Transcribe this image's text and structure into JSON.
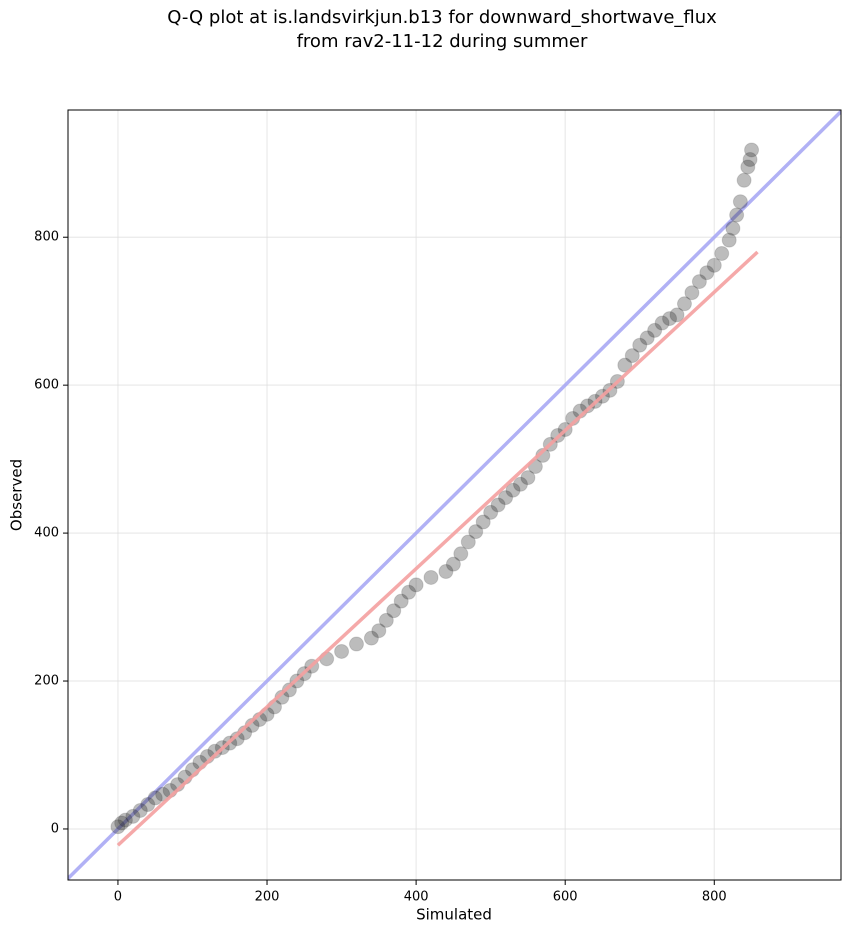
{
  "chart_data": {
    "type": "scatter",
    "title_lines": [
      "Q-Q plot at is.landsvirkjun.b13 for downward_shortwave_flux",
      "from rav2-11-12 during summer"
    ],
    "xlabel": "Simulated",
    "ylabel": "Observed",
    "xlim": [
      -67,
      970
    ],
    "ylim": [
      -69,
      972
    ],
    "xticks": [
      0,
      200,
      400,
      600,
      800
    ],
    "yticks": [
      0,
      200,
      400,
      600,
      800
    ],
    "grid": true,
    "series": [
      {
        "color": "#222222",
        "x": [
          0,
          5,
          10,
          20,
          30,
          40,
          50,
          60,
          70,
          80,
          90,
          100,
          110,
          120,
          130,
          140,
          150,
          160,
          170,
          180,
          190,
          200,
          210,
          220,
          230,
          240,
          250,
          260,
          280,
          300,
          320,
          340,
          350,
          360,
          370,
          380,
          390,
          400,
          420,
          440,
          450,
          460,
          470,
          480,
          490,
          500,
          510,
          520,
          530,
          540,
          550,
          560,
          570,
          580,
          590,
          600,
          610,
          620,
          630,
          640,
          650,
          660,
          670,
          680,
          690,
          700,
          710,
          720,
          730,
          740,
          750,
          760,
          770,
          780,
          790,
          800,
          810,
          820,
          825,
          830,
          835,
          840,
          845,
          848,
          850
        ],
        "values": [
          3,
          8,
          12,
          17,
          25,
          33,
          42,
          47,
          52,
          60,
          70,
          80,
          90,
          98,
          105,
          110,
          116,
          122,
          130,
          140,
          148,
          155,
          165,
          178,
          188,
          200,
          210,
          220,
          230,
          240,
          250,
          258,
          268,
          282,
          295,
          308,
          320,
          330,
          340,
          348,
          358,
          372,
          388,
          402,
          415,
          428,
          438,
          448,
          458,
          466,
          475,
          490,
          505,
          520,
          532,
          540,
          555,
          565,
          572,
          578,
          585,
          593,
          605,
          627,
          640,
          654,
          664,
          674,
          684,
          690,
          695,
          710,
          725,
          740,
          752,
          762,
          778,
          796,
          812,
          830,
          848,
          877,
          895,
          905,
          918
        ]
      }
    ],
    "fit_line": {
      "color": "#f4a0a0",
      "x": [
        0,
        858
      ],
      "values": [
        -22,
        780
      ]
    },
    "identity_line": {
      "color": "#a8a8f4",
      "x": [
        -67,
        970
      ],
      "values": [
        -67,
        970
      ]
    }
  }
}
